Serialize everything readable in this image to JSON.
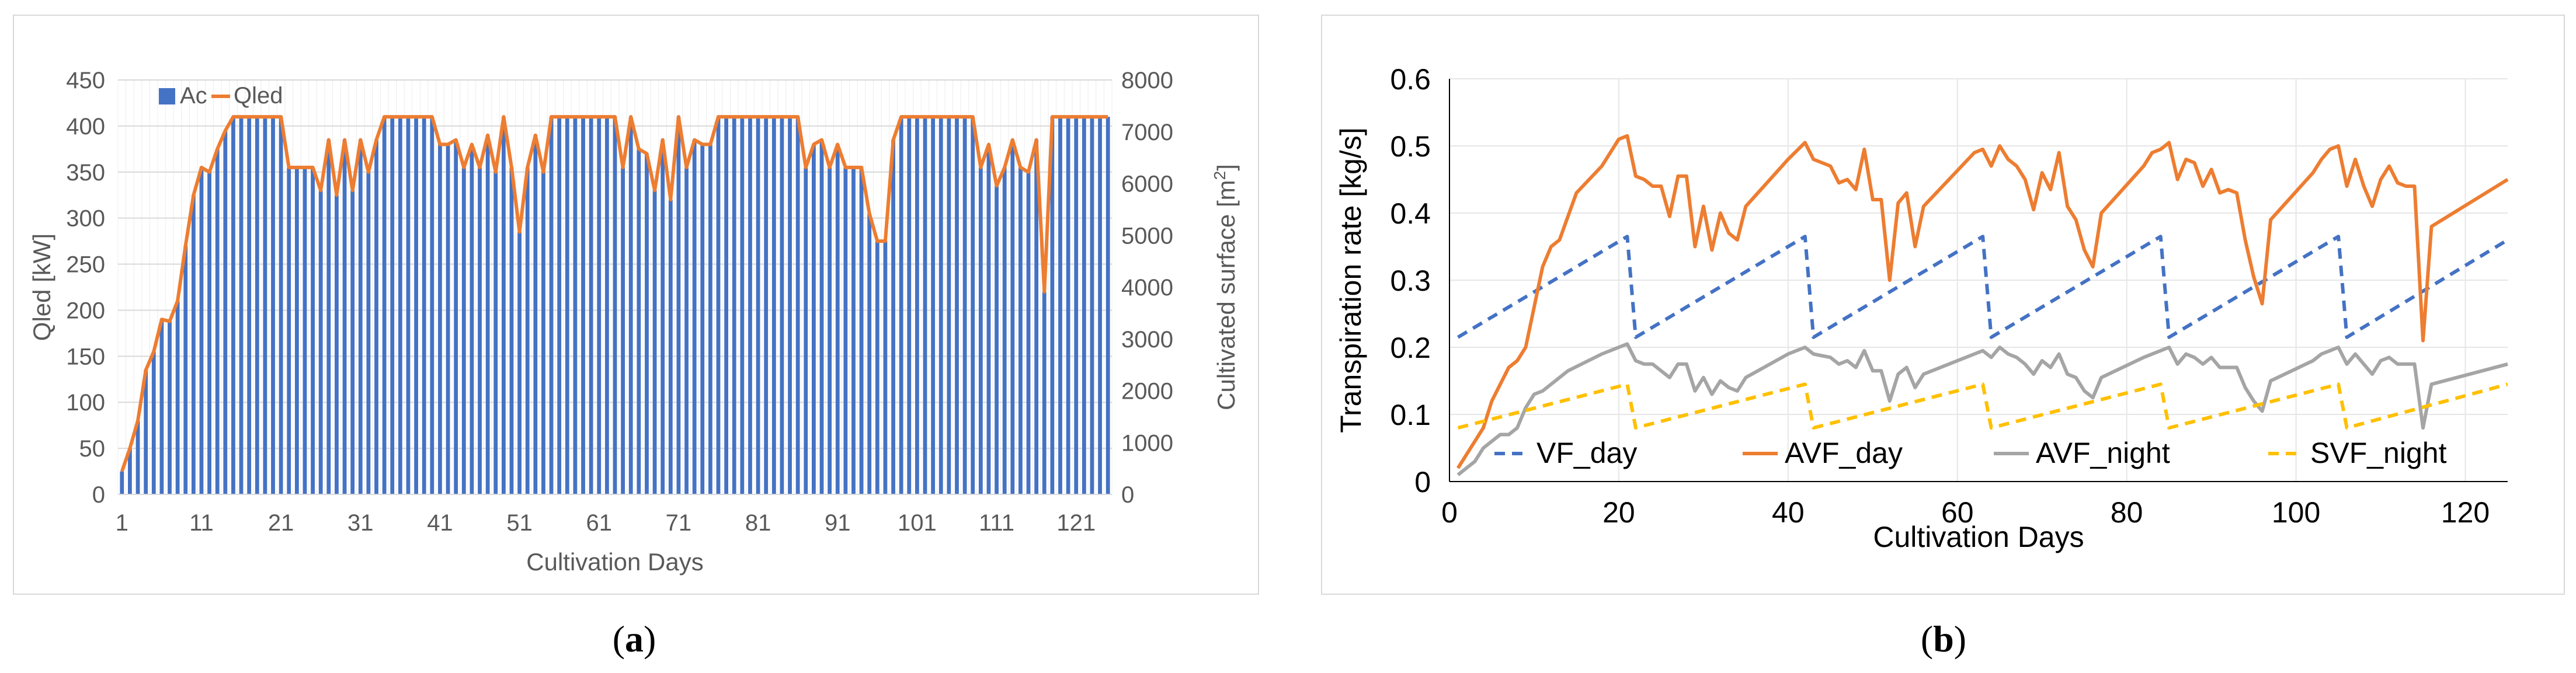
{
  "captions": {
    "a": "a",
    "b": "b"
  },
  "colors": {
    "bar": "#4472C4",
    "qled": "#ED7D31",
    "vf_day": "#4472C4",
    "avf_day": "#ED7D31",
    "avf_night": "#A5A5A5",
    "svf_night": "#FFC000"
  },
  "chart_data": [
    {
      "type": "bar",
      "legend": [
        "Ac",
        "Qled"
      ],
      "legend_position": "top-left",
      "xlabel": "Cultivation Days",
      "ylabel": "Qled  [kW]",
      "y2label": "Cultivated surface  [m2]",
      "ylim": [
        0,
        450
      ],
      "y2lim": [
        0,
        8000
      ],
      "yticks": [
        0,
        50,
        100,
        150,
        200,
        250,
        300,
        350,
        400,
        450
      ],
      "y2ticks": [
        0,
        1000,
        2000,
        3000,
        4000,
        5000,
        6000,
        7000,
        8000
      ],
      "xticks": [
        1,
        11,
        21,
        31,
        41,
        51,
        61,
        71,
        81,
        91,
        101,
        111,
        121
      ],
      "grid": true,
      "days": [
        1,
        125
      ],
      "series": [
        {
          "name": "Qled",
          "type": "line",
          "axis": "left",
          "values": [
            25,
            50,
            80,
            135,
            155,
            190,
            188,
            210,
            270,
            325,
            355,
            350,
            375,
            395,
            410,
            410,
            410,
            410,
            410,
            410,
            410,
            355,
            355,
            355,
            355,
            330,
            385,
            325,
            385,
            330,
            385,
            350,
            385,
            410,
            410,
            410,
            410,
            410,
            410,
            410,
            380,
            380,
            385,
            355,
            380,
            355,
            390,
            350,
            410,
            355,
            285,
            355,
            390,
            350,
            410,
            410,
            410,
            410,
            410,
            410,
            410,
            410,
            410,
            355,
            410,
            375,
            370,
            330,
            385,
            320,
            410,
            355,
            385,
            380,
            380,
            410,
            410,
            410,
            410,
            410,
            410,
            410,
            410,
            410,
            410,
            410,
            355,
            380,
            385,
            355,
            380,
            355,
            355,
            355,
            305,
            275,
            275,
            385,
            410,
            410,
            410,
            410,
            410,
            410,
            410,
            410,
            410,
            410,
            355,
            380,
            335,
            355,
            385,
            355,
            350,
            385,
            220,
            410,
            410,
            410,
            410,
            410,
            410,
            410,
            410
          ]
        },
        {
          "name": "Ac",
          "type": "bar",
          "axis": "right",
          "note": "values equal Qled in display units (scaled to right axis)",
          "values_ref": "Qled"
        }
      ]
    },
    {
      "type": "line",
      "xlabel": "Cultivation Days",
      "ylabel": "Transpiration rate [kg/s]",
      "ylim": [
        0,
        0.6
      ],
      "xlim": [
        0,
        125
      ],
      "yticks": [
        0,
        0.1,
        0.2,
        0.3,
        0.4,
        0.5,
        0.6
      ],
      "xticks": [
        0,
        20,
        40,
        60,
        80,
        100,
        120
      ],
      "legend_position": "bottom",
      "grid": true,
      "series": [
        {
          "name": "VF_day",
          "style": "dashed",
          "points": [
            [
              1,
              0.215
            ],
            [
              21,
              0.365
            ],
            [
              22,
              0.215
            ],
            [
              42,
              0.365
            ],
            [
              43,
              0.215
            ],
            [
              63,
              0.365
            ],
            [
              64,
              0.215
            ],
            [
              84,
              0.365
            ],
            [
              85,
              0.215
            ],
            [
              105,
              0.365
            ],
            [
              106,
              0.215
            ],
            [
              125,
              0.36
            ]
          ]
        },
        {
          "name": "AVF_day",
          "style": "solid",
          "points": [
            [
              1,
              0.02
            ],
            [
              4,
              0.08
            ],
            [
              5,
              0.12
            ],
            [
              7,
              0.17
            ],
            [
              8,
              0.18
            ],
            [
              9,
              0.2
            ],
            [
              11,
              0.32
            ],
            [
              12,
              0.35
            ],
            [
              13,
              0.36
            ],
            [
              15,
              0.43
            ],
            [
              18,
              0.47
            ],
            [
              20,
              0.51
            ],
            [
              21,
              0.515
            ],
            [
              22,
              0.455
            ],
            [
              23,
              0.45
            ],
            [
              24,
              0.44
            ],
            [
              25,
              0.44
            ],
            [
              26,
              0.395
            ],
            [
              27,
              0.455
            ],
            [
              28,
              0.455
            ],
            [
              29,
              0.35
            ],
            [
              30,
              0.41
            ],
            [
              31,
              0.345
            ],
            [
              32,
              0.4
            ],
            [
              33,
              0.37
            ],
            [
              34,
              0.36
            ],
            [
              35,
              0.41
            ],
            [
              40,
              0.48
            ],
            [
              42,
              0.505
            ],
            [
              43,
              0.48
            ],
            [
              45,
              0.47
            ],
            [
              46,
              0.445
            ],
            [
              47,
              0.45
            ],
            [
              48,
              0.435
            ],
            [
              49,
              0.495
            ],
            [
              50,
              0.42
            ],
            [
              51,
              0.42
            ],
            [
              52,
              0.3
            ],
            [
              53,
              0.415
            ],
            [
              54,
              0.43
            ],
            [
              55,
              0.35
            ],
            [
              56,
              0.41
            ],
            [
              62,
              0.49
            ],
            [
              63,
              0.495
            ],
            [
              64,
              0.47
            ],
            [
              65,
              0.5
            ],
            [
              66,
              0.48
            ],
            [
              67,
              0.47
            ],
            [
              68,
              0.45
            ],
            [
              69,
              0.405
            ],
            [
              70,
              0.46
            ],
            [
              71,
              0.435
            ],
            [
              72,
              0.49
            ],
            [
              73,
              0.41
            ],
            [
              74,
              0.39
            ],
            [
              75,
              0.345
            ],
            [
              76,
              0.32
            ],
            [
              77,
              0.4
            ],
            [
              82,
              0.47
            ],
            [
              83,
              0.49
            ],
            [
              84,
              0.495
            ],
            [
              85,
              0.505
            ],
            [
              86,
              0.45
            ],
            [
              87,
              0.48
            ],
            [
              88,
              0.475
            ],
            [
              89,
              0.44
            ],
            [
              90,
              0.465
            ],
            [
              91,
              0.43
            ],
            [
              92,
              0.435
            ],
            [
              93,
              0.43
            ],
            [
              94,
              0.36
            ],
            [
              95,
              0.305
            ],
            [
              96,
              0.265
            ],
            [
              97,
              0.39
            ],
            [
              102,
              0.46
            ],
            [
              103,
              0.48
            ],
            [
              104,
              0.495
            ],
            [
              105,
              0.5
            ],
            [
              106,
              0.44
            ],
            [
              107,
              0.48
            ],
            [
              108,
              0.44
            ],
            [
              109,
              0.41
            ],
            [
              110,
              0.45
            ],
            [
              111,
              0.47
            ],
            [
              112,
              0.445
            ],
            [
              113,
              0.44
            ],
            [
              114,
              0.44
            ],
            [
              115,
              0.21
            ],
            [
              116,
              0.38
            ],
            [
              125,
              0.45
            ]
          ]
        },
        {
          "name": "AVF_night",
          "style": "solid",
          "points": [
            [
              1,
              0.01
            ],
            [
              3,
              0.03
            ],
            [
              4,
              0.05
            ],
            [
              6,
              0.07
            ],
            [
              7,
              0.07
            ],
            [
              8,
              0.08
            ],
            [
              9,
              0.11
            ],
            [
              10,
              0.13
            ],
            [
              11,
              0.135
            ],
            [
              12,
              0.145
            ],
            [
              14,
              0.165
            ],
            [
              18,
              0.19
            ],
            [
              20,
              0.2
            ],
            [
              21,
              0.205
            ],
            [
              22,
              0.18
            ],
            [
              23,
              0.175
            ],
            [
              24,
              0.175
            ],
            [
              25,
              0.165
            ],
            [
              26,
              0.155
            ],
            [
              27,
              0.175
            ],
            [
              28,
              0.175
            ],
            [
              29,
              0.135
            ],
            [
              30,
              0.155
            ],
            [
              31,
              0.13
            ],
            [
              32,
              0.15
            ],
            [
              33,
              0.14
            ],
            [
              34,
              0.135
            ],
            [
              35,
              0.155
            ],
            [
              40,
              0.19
            ],
            [
              42,
              0.2
            ],
            [
              43,
              0.19
            ],
            [
              45,
              0.185
            ],
            [
              46,
              0.175
            ],
            [
              47,
              0.18
            ],
            [
              48,
              0.17
            ],
            [
              49,
              0.195
            ],
            [
              50,
              0.165
            ],
            [
              51,
              0.165
            ],
            [
              52,
              0.12
            ],
            [
              53,
              0.16
            ],
            [
              54,
              0.17
            ],
            [
              55,
              0.14
            ],
            [
              56,
              0.16
            ],
            [
              62,
              0.19
            ],
            [
              63,
              0.195
            ],
            [
              64,
              0.185
            ],
            [
              65,
              0.2
            ],
            [
              66,
              0.19
            ],
            [
              67,
              0.185
            ],
            [
              68,
              0.175
            ],
            [
              69,
              0.16
            ],
            [
              70,
              0.18
            ],
            [
              71,
              0.17
            ],
            [
              72,
              0.19
            ],
            [
              73,
              0.16
            ],
            [
              74,
              0.155
            ],
            [
              75,
              0.135
            ],
            [
              76,
              0.125
            ],
            [
              77,
              0.155
            ],
            [
              82,
              0.185
            ],
            [
              83,
              0.19
            ],
            [
              84,
              0.195
            ],
            [
              85,
              0.2
            ],
            [
              86,
              0.175
            ],
            [
              87,
              0.19
            ],
            [
              88,
              0.185
            ],
            [
              89,
              0.175
            ],
            [
              90,
              0.185
            ],
            [
              91,
              0.17
            ],
            [
              92,
              0.17
            ],
            [
              93,
              0.17
            ],
            [
              94,
              0.14
            ],
            [
              95,
              0.12
            ],
            [
              96,
              0.105
            ],
            [
              97,
              0.15
            ],
            [
              102,
              0.18
            ],
            [
              103,
              0.19
            ],
            [
              104,
              0.195
            ],
            [
              105,
              0.2
            ],
            [
              106,
              0.175
            ],
            [
              107,
              0.19
            ],
            [
              108,
              0.175
            ],
            [
              109,
              0.16
            ],
            [
              110,
              0.18
            ],
            [
              111,
              0.185
            ],
            [
              112,
              0.175
            ],
            [
              113,
              0.175
            ],
            [
              114,
              0.175
            ],
            [
              115,
              0.08
            ],
            [
              116,
              0.145
            ],
            [
              125,
              0.175
            ]
          ]
        },
        {
          "name": "SVF_night",
          "style": "dashed",
          "points": [
            [
              1,
              0.08
            ],
            [
              21,
              0.145
            ],
            [
              22,
              0.08
            ],
            [
              42,
              0.145
            ],
            [
              43,
              0.08
            ],
            [
              63,
              0.145
            ],
            [
              64,
              0.08
            ],
            [
              84,
              0.145
            ],
            [
              85,
              0.08
            ],
            [
              105,
              0.145
            ],
            [
              106,
              0.08
            ],
            [
              125,
              0.145
            ]
          ]
        }
      ]
    }
  ]
}
